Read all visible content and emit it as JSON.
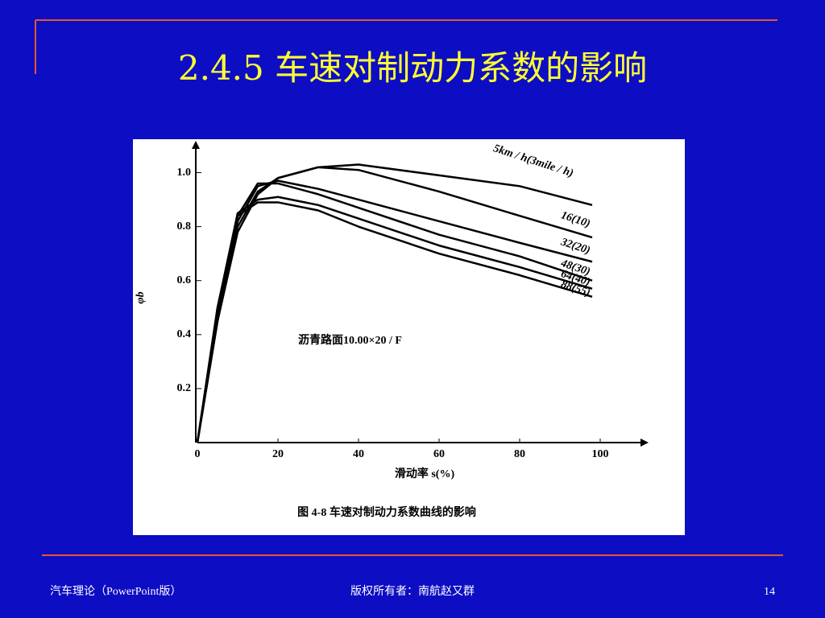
{
  "slide": {
    "title": "2.4.5 车速对制动力系数的影响",
    "footer_left": "汽车理论（PowerPoint版）",
    "footer_center": "版权所有者：南航赵又群",
    "page_number": "14"
  },
  "chart_data": {
    "type": "line",
    "caption": "图 4-8   车速对制动力系数曲线的影响",
    "x_label": "滑动率 s(%)",
    "y_label": "φb",
    "annotation": "沥青路面10.00×20 / F",
    "x": [
      0,
      5,
      10,
      15,
      20,
      30,
      40,
      60,
      80,
      98
    ],
    "series": [
      {
        "name": "5km / h(3mile / h)",
        "color": "#000000",
        "values": [
          0,
          0.45,
          0.78,
          0.92,
          0.98,
          1.02,
          1.03,
          0.99,
          0.95,
          0.88
        ]
      },
      {
        "name": "16(10)",
        "color": "#000000",
        "values": [
          0,
          0.45,
          0.8,
          0.93,
          0.98,
          1.02,
          1.01,
          0.93,
          0.84,
          0.76
        ]
      },
      {
        "name": "32(20)",
        "color": "#000000",
        "values": [
          0,
          0.47,
          0.82,
          0.95,
          0.97,
          0.94,
          0.9,
          0.82,
          0.74,
          0.67
        ]
      },
      {
        "name": "48(30)",
        "color": "#000000",
        "values": [
          0,
          0.48,
          0.84,
          0.96,
          0.96,
          0.92,
          0.87,
          0.77,
          0.69,
          0.6
        ]
      },
      {
        "name": "64(40)",
        "color": "#000000",
        "values": [
          0,
          0.5,
          0.85,
          0.9,
          0.91,
          0.88,
          0.83,
          0.73,
          0.65,
          0.57
        ]
      },
      {
        "name": "88(55)",
        "color": "#000000",
        "values": [
          0,
          0.5,
          0.84,
          0.89,
          0.89,
          0.86,
          0.8,
          0.7,
          0.62,
          0.54
        ]
      }
    ],
    "xlim": [
      0,
      110
    ],
    "ylim": [
      0,
      1.1
    ],
    "xticks": [
      0,
      20,
      40,
      60,
      80,
      100
    ],
    "yticks": [
      0.2,
      0.4,
      0.6,
      0.8,
      {
        "value": 1,
        "label": "1.0"
      }
    ]
  }
}
